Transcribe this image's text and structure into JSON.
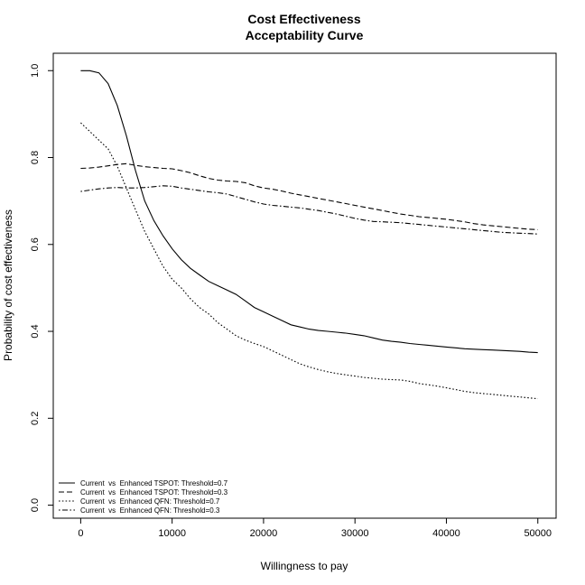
{
  "chart_data": {
    "type": "line",
    "title": [
      "Cost Effectiveness",
      "Acceptability Curve"
    ],
    "xlabel": "Willingness to pay",
    "ylabel": "Probability of cost effectiveness",
    "xlim": [
      -3000,
      52000
    ],
    "ylim": [
      -0.03,
      1.04
    ],
    "xticks": [
      0,
      10000,
      20000,
      30000,
      40000,
      50000
    ],
    "xtick_labels": [
      "0",
      "10000",
      "20000",
      "30000",
      "40000",
      "50000"
    ],
    "yticks": [
      0.0,
      0.2,
      0.4,
      0.6,
      0.8,
      1.0
    ],
    "ytick_labels": [
      "0.0",
      "0.2",
      "0.4",
      "0.6",
      "0.8",
      "1.0"
    ],
    "grid": false,
    "legend_position": "bottom-left",
    "x": [
      0,
      1000,
      2000,
      3000,
      4000,
      5000,
      6000,
      7000,
      8000,
      9000,
      10000,
      11000,
      12000,
      13000,
      14000,
      15000,
      16000,
      17000,
      18000,
      19000,
      20000,
      21000,
      22000,
      23000,
      24000,
      25000,
      26000,
      27000,
      28000,
      29000,
      30000,
      31000,
      32000,
      33000,
      34000,
      35000,
      36000,
      37000,
      38000,
      39000,
      40000,
      41000,
      42000,
      43000,
      44000,
      45000,
      46000,
      47000,
      48000,
      49000,
      50000
    ],
    "series": [
      {
        "name": "Current  vs  Enhanced TSPOT: Threshold=0.7",
        "dash": "solid",
        "values": [
          1.0,
          1.0,
          0.995,
          0.97,
          0.92,
          0.85,
          0.77,
          0.7,
          0.655,
          0.62,
          0.59,
          0.565,
          0.545,
          0.53,
          0.515,
          0.505,
          0.495,
          0.485,
          0.47,
          0.455,
          0.445,
          0.435,
          0.425,
          0.415,
          0.41,
          0.405,
          0.402,
          0.4,
          0.398,
          0.396,
          0.393,
          0.39,
          0.385,
          0.38,
          0.377,
          0.375,
          0.372,
          0.37,
          0.368,
          0.366,
          0.364,
          0.362,
          0.36,
          0.359,
          0.358,
          0.357,
          0.356,
          0.355,
          0.354,
          0.352,
          0.351
        ]
      },
      {
        "name": "Current  vs  Enhanced TSPOT: Threshold=0.3",
        "dash": "dashed",
        "values": [
          0.775,
          0.776,
          0.778,
          0.781,
          0.784,
          0.786,
          0.782,
          0.779,
          0.777,
          0.775,
          0.774,
          0.77,
          0.765,
          0.758,
          0.752,
          0.748,
          0.746,
          0.745,
          0.742,
          0.735,
          0.73,
          0.727,
          0.723,
          0.718,
          0.714,
          0.71,
          0.706,
          0.702,
          0.698,
          0.694,
          0.69,
          0.686,
          0.682,
          0.678,
          0.674,
          0.67,
          0.667,
          0.664,
          0.662,
          0.66,
          0.658,
          0.655,
          0.652,
          0.648,
          0.645,
          0.643,
          0.641,
          0.639,
          0.637,
          0.635,
          0.634
        ]
      },
      {
        "name": "Current  vs  Enhanced QFN: Threshold=0.7",
        "dash": "dotted",
        "values": [
          0.88,
          0.86,
          0.84,
          0.82,
          0.78,
          0.73,
          0.68,
          0.63,
          0.59,
          0.55,
          0.52,
          0.5,
          0.475,
          0.455,
          0.44,
          0.42,
          0.405,
          0.39,
          0.38,
          0.372,
          0.365,
          0.355,
          0.345,
          0.335,
          0.325,
          0.318,
          0.312,
          0.307,
          0.303,
          0.3,
          0.297,
          0.294,
          0.292,
          0.29,
          0.289,
          0.288,
          0.285,
          0.28,
          0.277,
          0.274,
          0.27,
          0.266,
          0.262,
          0.259,
          0.257,
          0.255,
          0.253,
          0.251,
          0.249,
          0.247,
          0.245
        ]
      },
      {
        "name": "Current  vs  Enhanced QFN: Threshold=0.3",
        "dash": "dotdash",
        "values": [
          0.722,
          0.725,
          0.728,
          0.73,
          0.731,
          0.73,
          0.73,
          0.731,
          0.733,
          0.735,
          0.734,
          0.73,
          0.727,
          0.724,
          0.721,
          0.719,
          0.716,
          0.71,
          0.704,
          0.698,
          0.693,
          0.69,
          0.688,
          0.686,
          0.684,
          0.681,
          0.678,
          0.674,
          0.67,
          0.665,
          0.66,
          0.656,
          0.653,
          0.652,
          0.651,
          0.65,
          0.648,
          0.646,
          0.644,
          0.642,
          0.64,
          0.638,
          0.636,
          0.634,
          0.632,
          0.63,
          0.628,
          0.627,
          0.626,
          0.625,
          0.624
        ]
      }
    ]
  }
}
